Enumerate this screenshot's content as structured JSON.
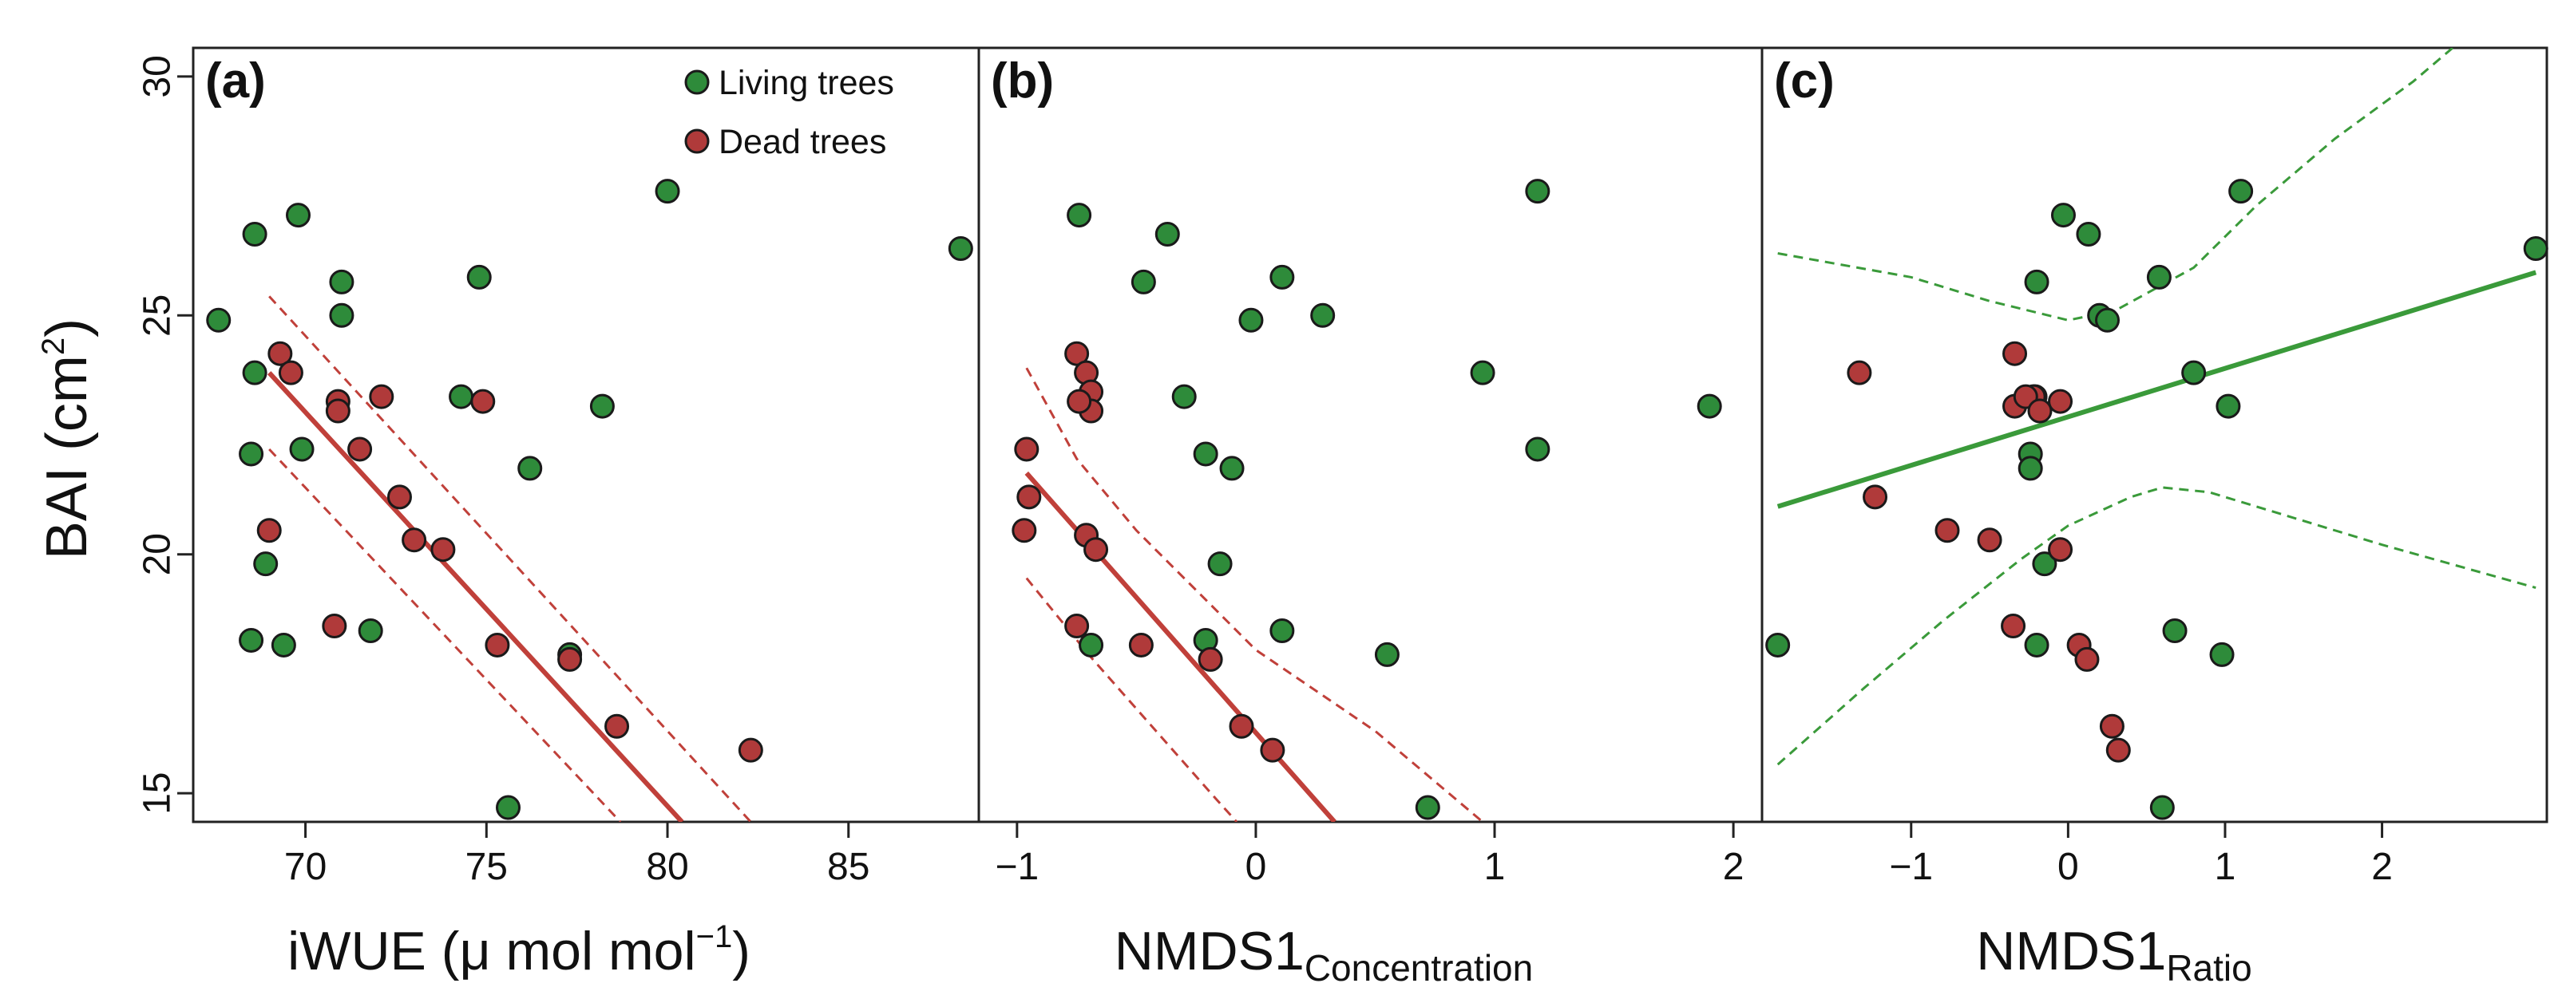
{
  "figure": {
    "ylabel": {
      "main": "BAI",
      "open": " (cm",
      "sup": "2",
      "close": ")"
    },
    "yticks": [
      15,
      20,
      25,
      30
    ],
    "ylim": [
      14.4,
      30.6
    ]
  },
  "legend": {
    "items": [
      {
        "label": "Living trees",
        "color": "#2e8b3a"
      },
      {
        "label": "Dead trees",
        "color": "#b03a3a"
      }
    ]
  },
  "colors": {
    "living_fill": "#2e8b3a",
    "dead_fill": "#b03a3a",
    "living_line": "#3a9a3a",
    "dead_line": "#c0403a"
  },
  "chart_data": [
    {
      "type": "scatter",
      "panel": "(a)",
      "xlabel": {
        "main": "iWUE (",
        "mu": "μ",
        "rest": " mol mol",
        "sup": "−1",
        "close": ")"
      },
      "xticks": [
        70,
        75,
        80,
        85
      ],
      "xlim": [
        66.9,
        88.6
      ],
      "series": [
        {
          "name": "Living trees",
          "points": [
            [
              67.6,
              24.9
            ],
            [
              68.6,
              26.7
            ],
            [
              69.8,
              27.1
            ],
            [
              71.0,
              25.7
            ],
            [
              71.0,
              25.0
            ],
            [
              74.8,
              25.8
            ],
            [
              80.0,
              27.6
            ],
            [
              88.1,
              26.4
            ],
            [
              68.6,
              23.8
            ],
            [
              68.5,
              22.1
            ],
            [
              69.9,
              22.2
            ],
            [
              68.9,
              19.8
            ],
            [
              74.3,
              23.3
            ],
            [
              76.2,
              21.8
            ],
            [
              78.2,
              23.1
            ],
            [
              68.5,
              18.2
            ],
            [
              69.4,
              18.1
            ],
            [
              71.8,
              18.4
            ],
            [
              77.3,
              17.9
            ],
            [
              75.6,
              14.7
            ]
          ]
        },
        {
          "name": "Dead trees",
          "points": [
            [
              69.3,
              24.2
            ],
            [
              69.6,
              23.8
            ],
            [
              70.9,
              23.2
            ],
            [
              70.9,
              23.0
            ],
            [
              72.1,
              23.3
            ],
            [
              71.5,
              22.2
            ],
            [
              72.6,
              21.2
            ],
            [
              73.0,
              20.3
            ],
            [
              73.8,
              20.1
            ],
            [
              69.0,
              20.5
            ],
            [
              70.8,
              18.5
            ],
            [
              75.3,
              18.1
            ],
            [
              77.3,
              17.8
            ],
            [
              74.9,
              23.2
            ],
            [
              78.6,
              16.4
            ],
            [
              82.3,
              15.9
            ]
          ]
        }
      ],
      "fit": {
        "series": "Dead trees",
        "line": [
          [
            69.0,
            23.8
          ],
          [
            80.4,
            14.4
          ]
        ],
        "upper_ci": [
          [
            69.0,
            25.4
          ],
          [
            82.3,
            14.4
          ]
        ],
        "lower_ci": [
          [
            69.0,
            22.2
          ],
          [
            78.7,
            14.4
          ]
        ]
      }
    },
    {
      "type": "scatter",
      "panel": "(b)",
      "xlabel": {
        "main": "NMDS1",
        "sub": "Concentration"
      },
      "xticks": [
        -1,
        0,
        1,
        2
      ],
      "xlim": [
        -1.16,
        2.12
      ],
      "series": [
        {
          "name": "Living trees",
          "points": [
            [
              -0.74,
              27.1
            ],
            [
              -0.37,
              26.7
            ],
            [
              1.18,
              27.6
            ],
            [
              -0.47,
              25.7
            ],
            [
              0.11,
              25.8
            ],
            [
              0.28,
              25.0
            ],
            [
              -0.02,
              24.9
            ],
            [
              -0.3,
              23.3
            ],
            [
              0.95,
              23.8
            ],
            [
              1.9,
              23.1
            ],
            [
              -0.21,
              22.1
            ],
            [
              -0.1,
              21.8
            ],
            [
              1.18,
              22.2
            ],
            [
              -0.15,
              19.8
            ],
            [
              -0.21,
              18.2
            ],
            [
              0.11,
              18.4
            ],
            [
              -0.69,
              18.1
            ],
            [
              0.55,
              17.9
            ],
            [
              0.72,
              14.7
            ]
          ]
        },
        {
          "name": "Dead trees",
          "points": [
            [
              -0.96,
              22.2
            ],
            [
              -0.75,
              24.2
            ],
            [
              -0.71,
              23.8
            ],
            [
              -0.69,
              23.4
            ],
            [
              -0.69,
              23.0
            ],
            [
              -0.74,
              23.2
            ],
            [
              -0.95,
              21.2
            ],
            [
              -0.97,
              20.5
            ],
            [
              -0.71,
              20.4
            ],
            [
              -0.67,
              20.1
            ],
            [
              -0.75,
              18.5
            ],
            [
              -0.48,
              18.1
            ],
            [
              -0.19,
              17.8
            ],
            [
              -0.06,
              16.4
            ],
            [
              0.07,
              15.9
            ]
          ]
        }
      ],
      "fit": {
        "series": "Dead trees",
        "line": [
          [
            -0.96,
            21.7
          ],
          [
            0.33,
            14.4
          ]
        ],
        "upper_ci": [
          [
            -0.96,
            23.9
          ],
          [
            -0.75,
            22.0
          ],
          [
            -0.5,
            20.5
          ],
          [
            0.0,
            18.0
          ],
          [
            0.5,
            16.3
          ],
          [
            0.95,
            14.4
          ]
        ],
        "lower_ci": [
          [
            -0.96,
            19.5
          ],
          [
            -0.7,
            17.9
          ],
          [
            -0.4,
            16.2
          ],
          [
            -0.17,
            14.9
          ],
          [
            -0.08,
            14.4
          ]
        ]
      }
    },
    {
      "type": "scatter",
      "panel": "(c)",
      "xlabel": {
        "main": "NMDS1",
        "sub": "Ratio"
      },
      "xticks": [
        -1,
        0,
        1,
        2
      ],
      "xlim": [
        -1.95,
        3.05
      ],
      "series": [
        {
          "name": "Living trees",
          "points": [
            [
              -0.03,
              27.1
            ],
            [
              1.1,
              27.6
            ],
            [
              0.13,
              26.7
            ],
            [
              -0.2,
              25.7
            ],
            [
              0.58,
              25.8
            ],
            [
              0.2,
              25.0
            ],
            [
              0.25,
              24.9
            ],
            [
              2.98,
              26.4
            ],
            [
              0.8,
              23.8
            ],
            [
              -0.21,
              23.3
            ],
            [
              1.02,
              23.1
            ],
            [
              -0.24,
              22.1
            ],
            [
              -0.24,
              21.8
            ],
            [
              -0.15,
              19.8
            ],
            [
              -0.2,
              18.1
            ],
            [
              -1.85,
              18.1
            ],
            [
              0.68,
              18.4
            ],
            [
              0.98,
              17.9
            ],
            [
              0.6,
              14.7
            ]
          ]
        },
        {
          "name": "Dead trees",
          "points": [
            [
              -1.33,
              23.8
            ],
            [
              -0.34,
              24.2
            ],
            [
              -0.34,
              23.1
            ],
            [
              -0.22,
              23.3
            ],
            [
              -0.27,
              23.3
            ],
            [
              -0.18,
              23.0
            ],
            [
              -0.05,
              23.2
            ],
            [
              -1.23,
              21.2
            ],
            [
              -0.77,
              20.5
            ],
            [
              -0.5,
              20.3
            ],
            [
              -0.05,
              20.1
            ],
            [
              -0.35,
              18.5
            ],
            [
              0.07,
              18.1
            ],
            [
              0.12,
              17.8
            ],
            [
              0.28,
              16.4
            ],
            [
              0.32,
              15.9
            ]
          ]
        }
      ],
      "fit": {
        "series": "Living trees",
        "line": [
          [
            -1.85,
            21.0
          ],
          [
            2.98,
            25.9
          ]
        ],
        "upper_ci": [
          [
            -1.85,
            26.3
          ],
          [
            -1.0,
            25.8
          ],
          [
            -0.5,
            25.3
          ],
          [
            0.0,
            24.9
          ],
          [
            0.3,
            25.1
          ],
          [
            0.8,
            26.0
          ],
          [
            1.2,
            27.3
          ],
          [
            1.7,
            28.7
          ],
          [
            2.2,
            29.9
          ],
          [
            2.45,
            30.6
          ]
        ],
        "lower_ci": [
          [
            -1.85,
            15.6
          ],
          [
            -1.3,
            17.2
          ],
          [
            -0.8,
            18.6
          ],
          [
            -0.3,
            19.9
          ],
          [
            0.0,
            20.6
          ],
          [
            0.4,
            21.2
          ],
          [
            0.6,
            21.4
          ],
          [
            0.9,
            21.3
          ],
          [
            1.4,
            20.8
          ],
          [
            2.0,
            20.2
          ],
          [
            2.98,
            19.3
          ]
        ]
      }
    }
  ]
}
